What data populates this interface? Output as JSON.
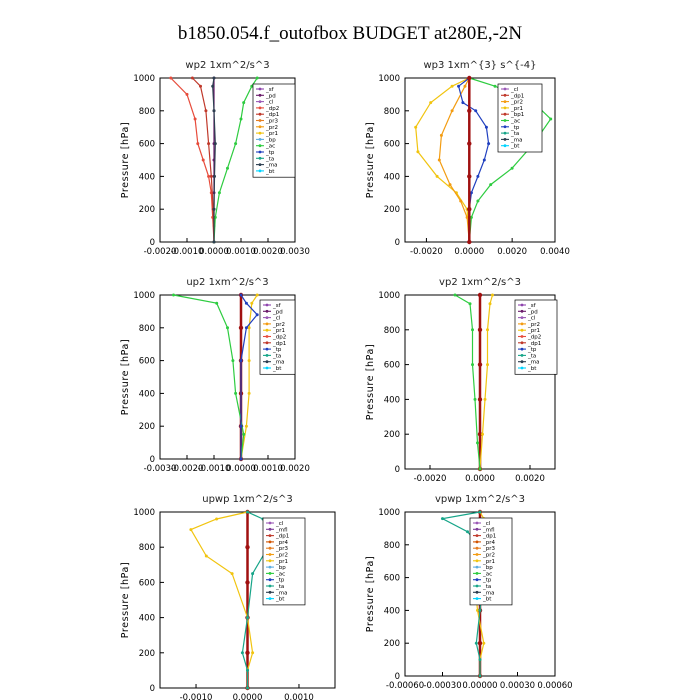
{
  "title": "b1850.054.f_outofbox  BUDGET at280E,-2N",
  "colors": {
    "sf": "#8e44ad",
    "pd": "#6a1b6a",
    "cl": "#9b59b6",
    "dp2": "#e74c3c",
    "dp1": "#c0392b",
    "pr3": "#e67e22",
    "pr2": "#f39c12",
    "pr1": "#f1c40f",
    "bp": "#5dade2",
    "ac": "#2ecc40",
    "tp": "#1f3fbf",
    "ta": "#17a589",
    "ma": "#2c3e50",
    "bt": "#00d4ff",
    "mfl": "#7d3c98",
    "pr4": "#d35400",
    "main": "#a01010"
  },
  "chart_data": [
    {
      "type": "line",
      "title": "wp2   1xm^2/s^3",
      "xlabel": "",
      "ylabel": "Pressure [hPa]",
      "xlim": [
        -0.002,
        0.003
      ],
      "xticks": [
        "-0.0020",
        "-0.0010",
        "0.0000",
        "0.0010",
        "0.0020",
        "0.0030"
      ],
      "ylim": [
        1000,
        0
      ],
      "yticks": [
        "0",
        "200",
        "400",
        "600",
        "800",
        "1000"
      ],
      "legend": [
        "_sf",
        "_pd",
        "_cl",
        "_dp2",
        "_dp1",
        "_pr3",
        "_pr2",
        "_pr1",
        "_bp",
        "_ac",
        "_tp",
        "_ta",
        "_ma",
        "_bt"
      ],
      "series": [
        {
          "name": "_pd",
          "key": "pd",
          "x": [
            0,
            0,
            0,
            0,
            0,
            0,
            0,
            0,
            0
          ],
          "y": [
            0,
            100,
            200,
            300,
            400,
            500,
            600,
            800,
            1000
          ]
        },
        {
          "name": "_dp2",
          "key": "dp2",
          "x": [
            0,
            -5e-05,
            -0.0001,
            -0.0002,
            -0.0004,
            -0.0006,
            -0.0007,
            -0.001,
            -0.0016
          ],
          "y": [
            0,
            150,
            300,
            400,
            500,
            600,
            750,
            900,
            1000
          ]
        },
        {
          "name": "_dp1",
          "key": "dp1",
          "x": [
            0,
            -3e-05,
            -0.0001,
            -0.0002,
            -0.0003,
            -0.0005,
            -0.0008
          ],
          "y": [
            0,
            200,
            400,
            600,
            800,
            950,
            1000
          ]
        },
        {
          "name": "_ac",
          "key": "ac",
          "x": [
            0,
            5e-05,
            0.0002,
            0.0005,
            0.0008,
            0.001,
            0.0011,
            0.0014,
            0.0016
          ],
          "y": [
            0,
            150,
            300,
            450,
            600,
            750,
            850,
            950,
            1000
          ]
        },
        {
          "name": "_ma",
          "key": "ma",
          "x": [
            0,
            0,
            2e-05,
            5e-05,
            0,
            -5e-05,
            0
          ],
          "y": [
            0,
            200,
            400,
            600,
            800,
            950,
            1000
          ]
        }
      ]
    },
    {
      "type": "line",
      "title": "wp3   1xm^{3} s^{-4}",
      "xlabel": "",
      "ylabel": "Pressure [hPa]",
      "xlim": [
        -0.003,
        0.004
      ],
      "xticks": [
        "-0.0020",
        "0.0000",
        "0.0020",
        "0.0040"
      ],
      "ylim": [
        1000,
        0
      ],
      "yticks": [
        "0",
        "200",
        "400",
        "600",
        "800",
        "1000"
      ],
      "legend": [
        "_cl",
        "_dp1",
        "_pr2",
        "_pr1",
        "_bp1",
        "_ac",
        "_tp",
        "_ta",
        "_ma",
        "_bt"
      ],
      "series": [
        {
          "name": "_pr1",
          "key": "pr1",
          "x": [
            0,
            -0.0001,
            -0.0006,
            -0.0015,
            -0.0024,
            -0.0025,
            -0.0018,
            -0.0008,
            0
          ],
          "y": [
            0,
            200,
            300,
            400,
            550,
            700,
            850,
            950,
            1000
          ]
        },
        {
          "name": "_pr2",
          "key": "pr2",
          "x": [
            0,
            -0.0001,
            -0.0004,
            -0.0009,
            -0.0014,
            -0.0013,
            -0.0008,
            -0.0002,
            0
          ],
          "y": [
            0,
            150,
            250,
            350,
            500,
            650,
            800,
            950,
            1000
          ]
        },
        {
          "name": "_ac",
          "key": "ac",
          "x": [
            0,
            0.0001,
            0.0004,
            0.001,
            0.002,
            0.003,
            0.0038,
            0.003,
            0.0012,
            0
          ],
          "y": [
            0,
            150,
            250,
            350,
            450,
            600,
            750,
            850,
            950,
            1000
          ]
        },
        {
          "name": "_tp",
          "key": "tp",
          "x": [
            0,
            0,
            0.0001,
            0.0004,
            0.0007,
            0.0009,
            0.0008,
            0.0003,
            -0.0003,
            -0.0005,
            0
          ],
          "y": [
            0,
            200,
            300,
            400,
            500,
            600,
            700,
            800,
            850,
            950,
            1000
          ]
        },
        {
          "name": "_bt",
          "key": "main",
          "x": [
            0,
            0,
            0,
            0,
            0,
            0
          ],
          "y": [
            0,
            200,
            400,
            600,
            800,
            1000
          ]
        }
      ]
    },
    {
      "type": "line",
      "title": "up2   1xm^2/s^3",
      "xlabel": "",
      "ylabel": "Pressure [hPa]",
      "xlim": [
        -0.003,
        0.002
      ],
      "xticks": [
        "-0.0030",
        "-0.0020",
        "-0.0010",
        "0.0000",
        "0.0010",
        "0.0020"
      ],
      "ylim": [
        1000,
        0
      ],
      "yticks": [
        "0",
        "200",
        "400",
        "600",
        "800",
        "1000"
      ],
      "legend": [
        "_sf",
        "_pd",
        "_cl",
        "_pr2",
        "_pr1",
        "_dp2",
        "_dp1",
        "_tp",
        "_ta",
        "_ma",
        "_bt"
      ],
      "series": [
        {
          "name": "_pd",
          "key": "main",
          "x": [
            0,
            0,
            0,
            0,
            0,
            0
          ],
          "y": [
            0,
            200,
            400,
            600,
            800,
            1000
          ]
        },
        {
          "name": "_pr1",
          "key": "pr1",
          "x": [
            0,
            0.0002,
            0.0003,
            0.0003,
            0.0003,
            0.0004,
            0.0006
          ],
          "y": [
            0,
            200,
            400,
            600,
            800,
            950,
            1000
          ]
        },
        {
          "name": "_dp2",
          "key": "ac",
          "x": [
            0,
            0.0001,
            -0.0002,
            -0.0003,
            -0.0005,
            -0.0009,
            -0.0025
          ],
          "y": [
            0,
            150,
            400,
            600,
            800,
            950,
            1000
          ]
        },
        {
          "name": "_tp",
          "key": "tp",
          "x": [
            0,
            0,
            0,
            0.0002,
            0.0006,
            0.0002,
            0
          ],
          "y": [
            0,
            200,
            600,
            800,
            880,
            950,
            1000
          ]
        }
      ]
    },
    {
      "type": "line",
      "title": "vp2   1xm^2/s^3",
      "xlabel": "",
      "ylabel": "Pressure [hPa]",
      "xlim": [
        -0.003,
        0.003
      ],
      "xticks": [
        "-0.0020",
        "0.0000",
        "0.0020"
      ],
      "ylim": [
        1000,
        0
      ],
      "yticks": [
        "0",
        "200",
        "400",
        "600",
        "800",
        "1000"
      ],
      "legend": [
        "_sf",
        "_pd",
        "_cl",
        "_pr2",
        "_pr1",
        "_dp2",
        "_dp1",
        "_tp",
        "_ta",
        "_ma",
        "_bt"
      ],
      "series": [
        {
          "name": "_pd",
          "key": "main",
          "x": [
            0,
            0,
            0,
            0,
            0,
            0
          ],
          "y": [
            0,
            200,
            400,
            600,
            800,
            1000
          ]
        },
        {
          "name": "_pr1",
          "key": "pr1",
          "x": [
            0,
            0.0001,
            0.0002,
            0.0003,
            0.0003,
            0.0004,
            0.0005
          ],
          "y": [
            0,
            200,
            400,
            600,
            800,
            950,
            1000
          ]
        },
        {
          "name": "_dp2",
          "key": "ac",
          "x": [
            0,
            -0.0001,
            -0.0002,
            -0.0003,
            -0.0003,
            -0.0004,
            -0.001
          ],
          "y": [
            0,
            150,
            400,
            600,
            800,
            950,
            1000
          ]
        }
      ]
    },
    {
      "type": "line",
      "title": "upwp   1xm^2/s^3",
      "xlabel": "",
      "ylabel": "Pressure [hPa]",
      "xlim": [
        -0.0017,
        0.0017
      ],
      "xticks": [
        "-0.0010",
        "0.0000",
        "0.0010"
      ],
      "ylim": [
        1000,
        0
      ],
      "yticks": [
        "0",
        "200",
        "400",
        "600",
        "800",
        "1000"
      ],
      "legend": [
        "_cl",
        "_mfl",
        "_dp1",
        "_pr4",
        "_pr3",
        "_pr2",
        "_pr1",
        "_bp",
        "_ac",
        "_tp",
        "_ta",
        "_ma",
        "_bt"
      ],
      "series": [
        {
          "name": "_mfl",
          "key": "main",
          "x": [
            0,
            0,
            0,
            0,
            0,
            0
          ],
          "y": [
            0,
            200,
            400,
            600,
            800,
            1000
          ]
        },
        {
          "name": "_pr1",
          "key": "pr1",
          "x": [
            0,
            0,
            0.0001,
            0,
            -0.0003,
            -0.0008,
            -0.0011,
            -0.0006,
            0
          ],
          "y": [
            0,
            100,
            200,
            400,
            650,
            750,
            900,
            960,
            1000
          ]
        },
        {
          "name": "_tp",
          "key": "ta",
          "x": [
            0,
            0,
            -0.0001,
            0,
            0.0001,
            0.0004,
            0.0007,
            0.0003,
            0
          ],
          "y": [
            0,
            100,
            200,
            400,
            650,
            800,
            900,
            960,
            1000
          ]
        }
      ]
    },
    {
      "type": "line",
      "title": "vpwp   1xm^2/s^3",
      "xlabel": "",
      "ylabel": "Pressure [hPa]",
      "xlim": [
        -0.0006,
        0.0006
      ],
      "xticks": [
        "-0.00060",
        "-0.00030",
        "0.00000",
        "0.00030",
        "0.00060"
      ],
      "ylim": [
        1000,
        0
      ],
      "yticks": [
        "0",
        "200",
        "400",
        "600",
        "800",
        "1000"
      ],
      "legend": [
        "_cl",
        "_mfl",
        "_dp1",
        "_pr4",
        "_pr3",
        "_pr2",
        "_pr1",
        "_bp",
        "_ac",
        "_tp",
        "_ta",
        "_ma",
        "_bt"
      ],
      "series": [
        {
          "name": "_mfl",
          "key": "main",
          "x": [
            0,
            0,
            0,
            0,
            0,
            0
          ],
          "y": [
            0,
            200,
            400,
            600,
            800,
            1000
          ]
        },
        {
          "name": "_pr1",
          "key": "pr1",
          "x": [
            0,
            0,
            3e-05,
            -2e-05,
            -5e-05,
            2e-05,
            8e-05,
            3e-05,
            0
          ],
          "y": [
            0,
            100,
            200,
            400,
            650,
            750,
            850,
            960,
            1000
          ]
        },
        {
          "name": "_tp",
          "key": "ta",
          "x": [
            0,
            0,
            -3e-05,
            0,
            3e-05,
            5e-05,
            -0.0001,
            -0.0003,
            0
          ],
          "y": [
            0,
            100,
            200,
            400,
            650,
            750,
            880,
            960,
            1000
          ]
        }
      ]
    }
  ]
}
